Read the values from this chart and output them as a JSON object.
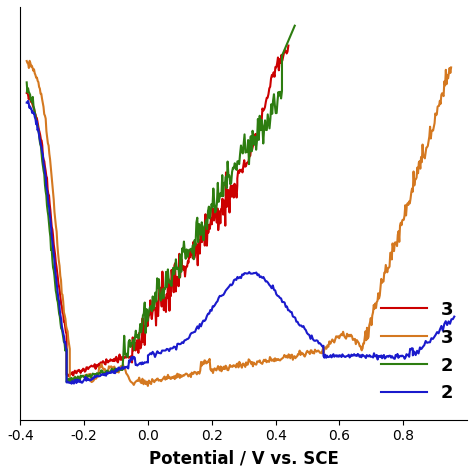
{
  "title": "",
  "xlabel": "Potential / V vs. SCE",
  "xlabel_fontsize": 12,
  "xlabel_fontweight": "bold",
  "xlim": [
    -0.4,
    1.0
  ],
  "xticks": [
    -0.4,
    -0.2,
    0.0,
    0.2,
    0.4,
    0.6,
    0.8
  ],
  "legend_labels": [
    "3",
    "3",
    "2",
    "2"
  ],
  "line_colors": [
    "#cc0000",
    "#d47820",
    "#2d7d10",
    "#1a1acc"
  ],
  "line_width": 1.5,
  "background_color": "#ffffff"
}
